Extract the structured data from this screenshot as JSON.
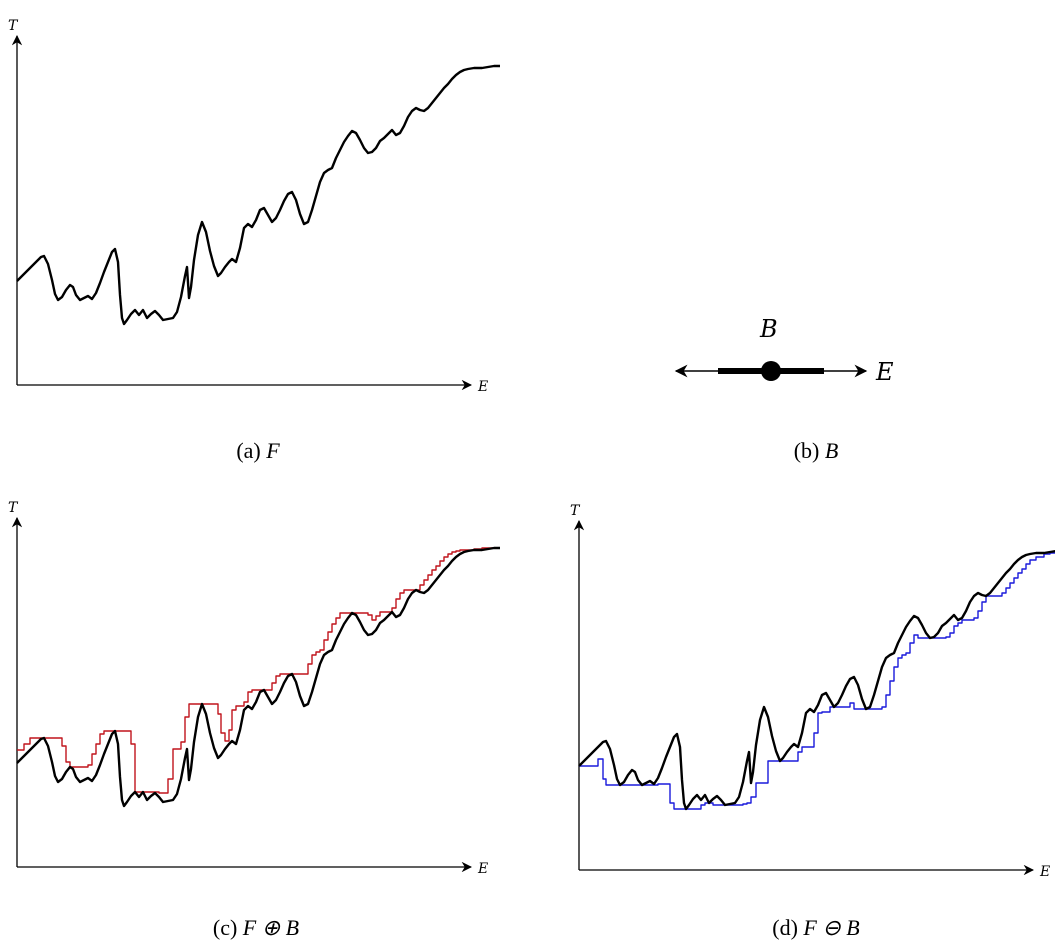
{
  "panels": [
    {
      "id": "a",
      "caption_prefix": "(a)",
      "caption_math": "F",
      "y_axis_label": "T",
      "x_axis_label": "E"
    },
    {
      "id": "b",
      "caption_prefix": "(b)",
      "caption_math": "B",
      "element_label": "B",
      "axis_label": "E"
    },
    {
      "id": "c",
      "caption_prefix": "(c)",
      "caption_math": "F ⊕ B",
      "y_axis_label": "T",
      "x_axis_label": "E",
      "derived_color": "#c0141c"
    },
    {
      "id": "d",
      "caption_prefix": "(d)",
      "caption_math": "F ⊖ B",
      "y_axis_label": "T",
      "x_axis_label": "E",
      "derived_color": "#1a1adc"
    }
  ],
  "colors": {
    "signal": "#000000",
    "dilation": "#c0141c",
    "erosion": "#1a1adc"
  }
}
